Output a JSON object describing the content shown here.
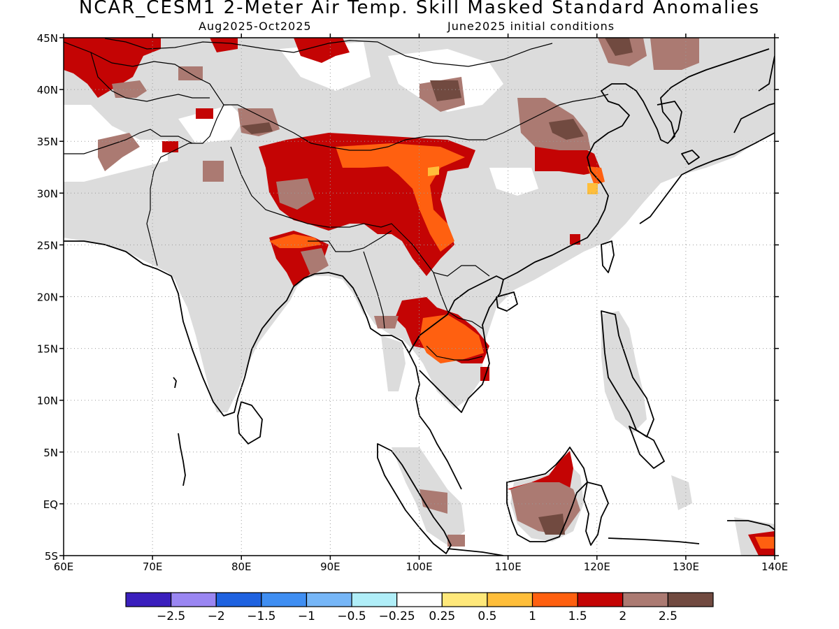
{
  "header": {
    "title": "NCAR_CESM1 2-Meter Air Temp. Skill Masked Standard Anomalies",
    "period": "Aug2025-Oct2025",
    "init": "June2025 initial conditions"
  },
  "axes": {
    "lon_ticks": [
      "60E",
      "70E",
      "80E",
      "90E",
      "100E",
      "110E",
      "120E",
      "130E",
      "140E"
    ],
    "lat_ticks": [
      "5S",
      "EQ",
      "5N",
      "10N",
      "15N",
      "20N",
      "25N",
      "30N",
      "35N",
      "40N",
      "45N"
    ]
  },
  "colorbar": {
    "colors": [
      "#3a1fbd",
      "#9a86f2",
      "#1f62e0",
      "#3f8ef2",
      "#76b6f7",
      "#b0eef8",
      "#ffffff",
      "#ffe87a",
      "#ffbe3a",
      "#ff6010",
      "#c40404",
      "#ab7a72",
      "#714a40"
    ],
    "labels": [
      "-2.5",
      "-2",
      "-1.5",
      "-1",
      "-0.5",
      "-0.25",
      "0.25",
      "0.5",
      "1",
      "1.5",
      "2",
      "2.5"
    ]
  },
  "legend": {
    "masked_color": "#dcdcdc"
  }
}
